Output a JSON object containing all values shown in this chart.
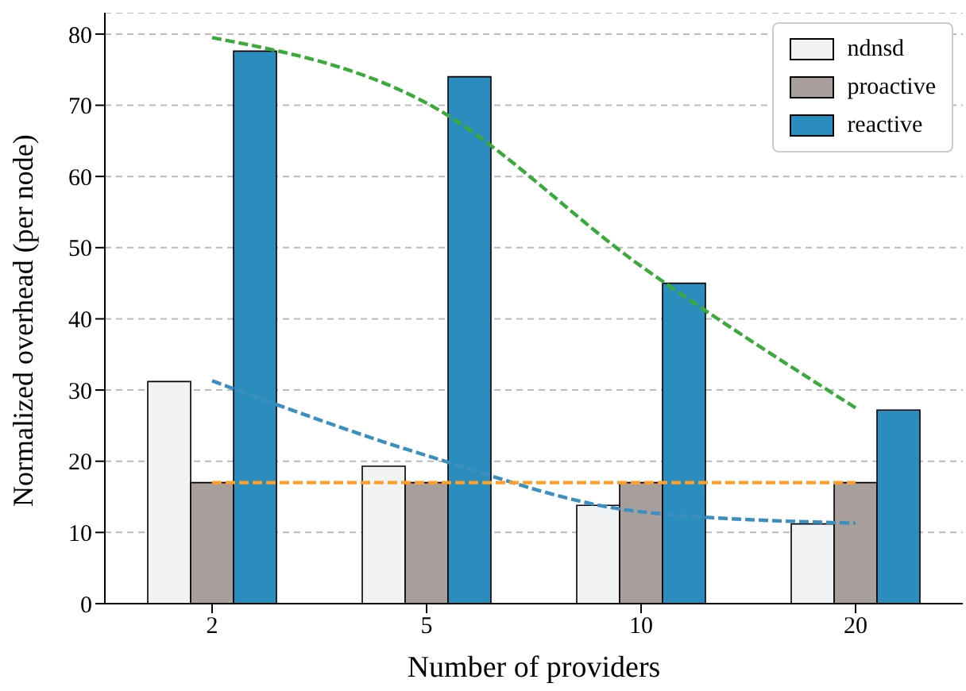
{
  "chart_data": {
    "type": "bar",
    "xlabel": "Number of providers",
    "ylabel": "Normalized overhead (per node)",
    "categories": [
      "2",
      "5",
      "10",
      "20"
    ],
    "series": [
      {
        "name": "ndnsd",
        "color": "#f0f2f4",
        "values": [
          31.2,
          19.3,
          13.8,
          11.2
        ]
      },
      {
        "name": "proactive",
        "color": "#a89f9c",
        "values": [
          17,
          17,
          17,
          17
        ]
      },
      {
        "name": "reactive",
        "color": "#2b8cbe",
        "values": [
          77.6,
          74,
          45,
          27.2
        ]
      },
      {
        "type": "line",
        "color": "#3a8fc0",
        "line_style": "dashed",
        "values": [
          31.3,
          20.8,
          12.9,
          11.3
        ]
      },
      {
        "type": "line",
        "color": "#ff9f2a",
        "line_style": "dashed",
        "values": [
          17,
          17,
          17,
          17
        ]
      },
      {
        "type": "line",
        "color": "#3aaa3a",
        "line_style": "dashed",
        "values": [
          79.5,
          70.3,
          47.4,
          27.5
        ]
      }
    ],
    "ylim": [
      0,
      83
    ],
    "yticks": [
      0,
      10,
      20,
      30,
      40,
      50,
      60,
      70,
      80
    ],
    "grid": "y",
    "legend": "top right"
  }
}
